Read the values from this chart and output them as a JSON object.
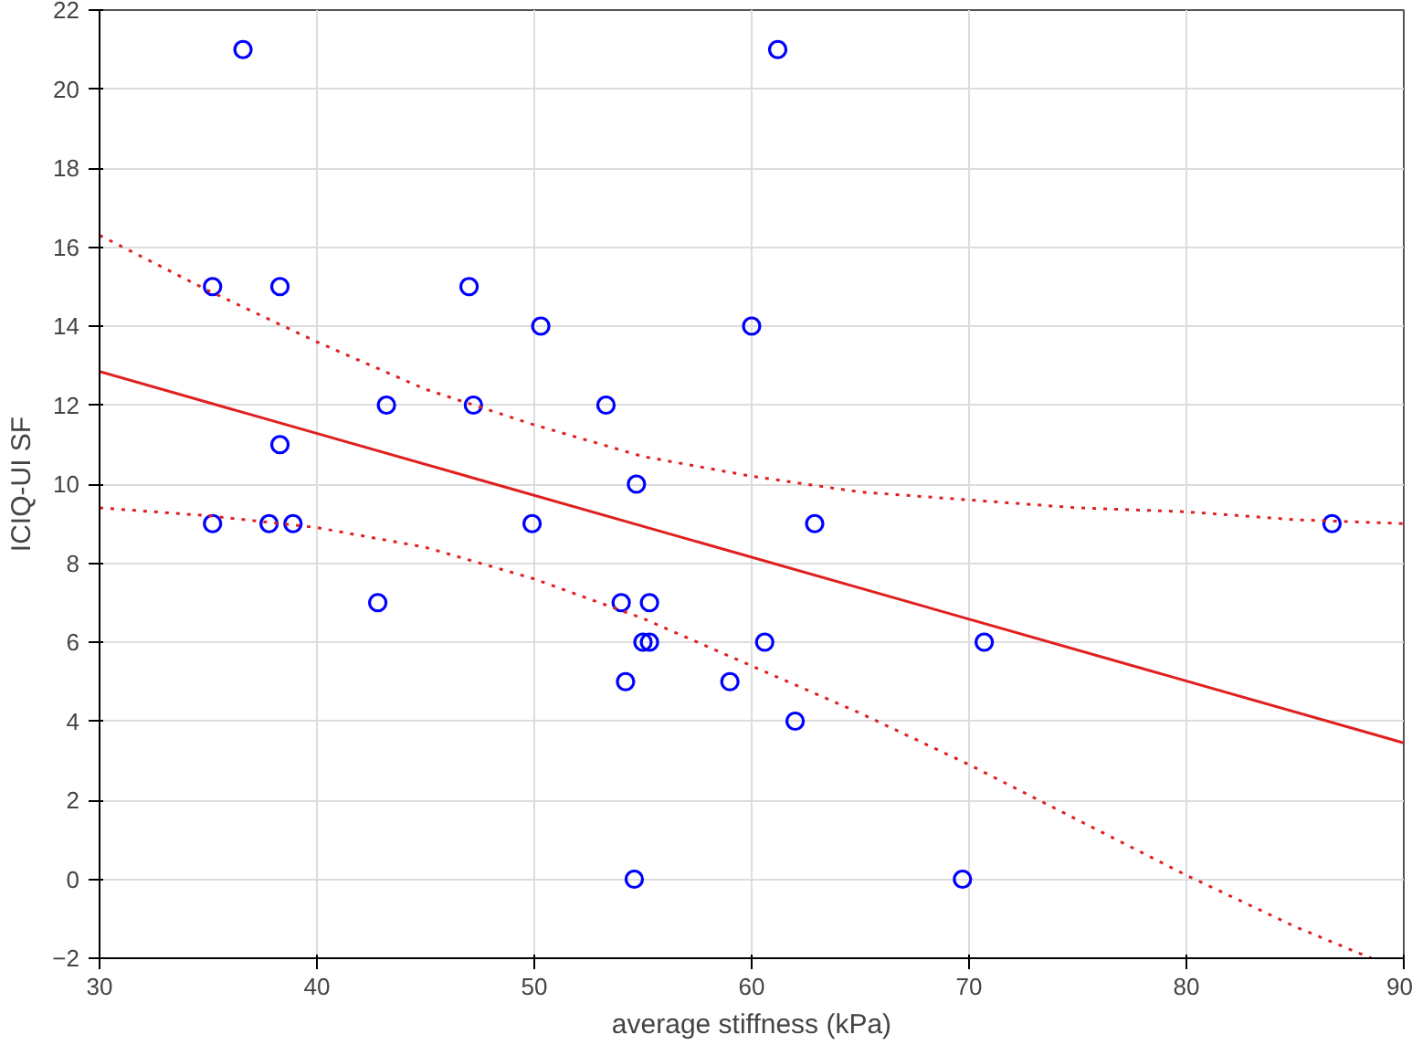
{
  "chart_data": {
    "type": "scatter",
    "xlabel": "average stiffness (kPa)",
    "ylabel": "ICIQ-UI SF",
    "xlim": [
      30,
      90
    ],
    "ylim": [
      -2,
      22
    ],
    "xticks": [
      30,
      40,
      50,
      60,
      70,
      80,
      90
    ],
    "yticks": [
      -2,
      0,
      2,
      4,
      6,
      8,
      10,
      12,
      14,
      16,
      18,
      20,
      22
    ],
    "grid": true,
    "series": [
      {
        "marker": "circle",
        "color": "#0000ff",
        "x": [
          36.6,
          61.2,
          35.2,
          38.3,
          47.0,
          50.3,
          60.0,
          43.2,
          47.2,
          53.3,
          38.3,
          54.7,
          35.2,
          37.8,
          38.9,
          49.9,
          62.9,
          86.7,
          42.8,
          54.0,
          55.3,
          55.0,
          55.3,
          60.6,
          70.7,
          54.2,
          59.0,
          62.0,
          54.6,
          69.7
        ],
        "values": [
          21,
          21,
          15,
          15,
          15,
          14,
          14,
          12,
          12,
          12,
          11,
          10,
          9,
          9,
          9,
          9,
          9,
          9,
          7,
          7,
          7,
          6,
          6,
          6,
          6,
          5,
          5,
          4,
          0,
          0
        ]
      },
      {
        "type": "line",
        "line_style": "solid",
        "color": "#e02020",
        "x": [
          30,
          90
        ],
        "values": [
          12.85,
          3.45
        ]
      },
      {
        "type": "line",
        "line_style": "dotted",
        "color": "#e02020",
        "x": [
          30,
          35,
          40,
          45,
          50,
          55,
          60,
          65,
          70,
          75,
          80,
          85,
          90
        ],
        "values": [
          16.3,
          14.9,
          13.6,
          12.4,
          11.5,
          10.7,
          10.2,
          9.8,
          9.6,
          9.4,
          9.3,
          9.1,
          9.0
        ]
      },
      {
        "type": "line",
        "line_style": "dotted",
        "color": "#e02020",
        "x": [
          30,
          35,
          40,
          45,
          50,
          55,
          60,
          65,
          70,
          75,
          80,
          85,
          88.5
        ],
        "values": [
          9.4,
          9.2,
          8.9,
          8.4,
          7.6,
          6.6,
          5.4,
          4.2,
          2.9,
          1.5,
          0.1,
          -1.2,
          -2
        ]
      }
    ]
  }
}
